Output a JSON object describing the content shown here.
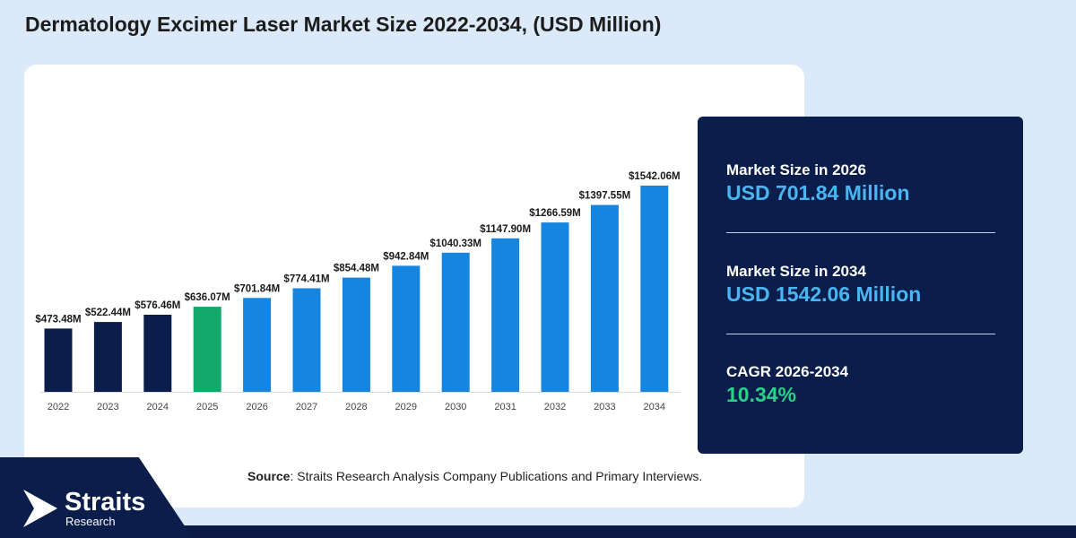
{
  "title": "Dermatology Excimer Laser Market Size 2022-2034, (USD Million)",
  "source": {
    "label": "Source",
    "text": ": Straits Research Analysis Company Publications and Primary Interviews."
  },
  "logo": {
    "name": "Straits",
    "sub": "Research"
  },
  "stats": [
    {
      "label": "Market Size in 2026",
      "value": "USD 701.84 Million"
    },
    {
      "label": "Market Size in 2034",
      "value": "USD 1542.06 Million"
    },
    {
      "label": "CAGR 2026-2034",
      "value": "10.34%"
    }
  ],
  "colors": {
    "historical": "#0b1e4b",
    "base_year": "#13a96b",
    "forecast": "#1685e0",
    "cagr": "#28d28a",
    "stat_value": "#47b6f2"
  },
  "chart_data": {
    "type": "bar",
    "categories": [
      "2022",
      "2023",
      "2024",
      "2025",
      "2026",
      "2027",
      "2028",
      "2029",
      "2030",
      "2031",
      "2032",
      "2033",
      "2034"
    ],
    "values": [
      473.48,
      522.44,
      576.46,
      636.07,
      701.84,
      774.41,
      854.48,
      942.84,
      1040.33,
      1147.9,
      1266.59,
      1397.55,
      1542.06
    ],
    "data_labels": [
      "$473.48M",
      "$522.44M",
      "$576.46M",
      "$636.07M",
      "$701.84M",
      "$774.41M",
      "$854.48M",
      "$942.84M",
      "$1040.33M",
      "$1147.90M",
      "$1266.59M",
      "$1397.55M",
      "$1542.06M"
    ],
    "bar_color_groups": [
      "historical",
      "historical",
      "historical",
      "base_year",
      "forecast",
      "forecast",
      "forecast",
      "forecast",
      "forecast",
      "forecast",
      "forecast",
      "forecast",
      "forecast"
    ],
    "title": "",
    "xlabel": "",
    "ylabel": "",
    "grid": false
  }
}
